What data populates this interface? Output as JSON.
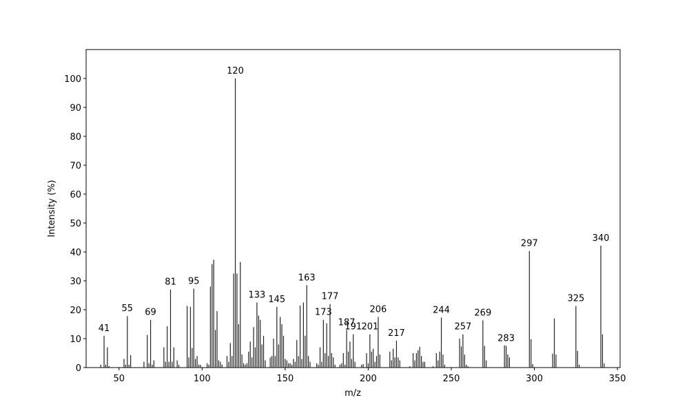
{
  "chart_data": {
    "type": "stem",
    "xlabel": "m/z",
    "ylabel": "Intensity (%)",
    "color": "#222222",
    "xlim": [
      30.2,
      351.6
    ],
    "ylim": [
      0,
      110
    ],
    "xticks": [
      50,
      100,
      150,
      200,
      250,
      300,
      350
    ],
    "yticks": [
      0,
      10,
      20,
      30,
      40,
      50,
      60,
      70,
      80,
      90,
      100
    ],
    "points": [
      {
        "x": 39,
        "y": 1
      },
      {
        "x": 41,
        "y": 11,
        "label": "41"
      },
      {
        "x": 42,
        "y": 1
      },
      {
        "x": 43,
        "y": 7
      },
      {
        "x": 44,
        "y": 0.5
      },
      {
        "x": 53,
        "y": 3
      },
      {
        "x": 54,
        "y": 1
      },
      {
        "x": 55,
        "y": 17.8,
        "label": "55"
      },
      {
        "x": 56,
        "y": 1
      },
      {
        "x": 57,
        "y": 4.3
      },
      {
        "x": 65,
        "y": 2
      },
      {
        "x": 67,
        "y": 11.3
      },
      {
        "x": 68,
        "y": 1.5
      },
      {
        "x": 69,
        "y": 16.5,
        "label": "69"
      },
      {
        "x": 70,
        "y": 1
      },
      {
        "x": 71,
        "y": 2.5
      },
      {
        "x": 77,
        "y": 7
      },
      {
        "x": 78,
        "y": 2
      },
      {
        "x": 79,
        "y": 14.3
      },
      {
        "x": 80,
        "y": 2
      },
      {
        "x": 81,
        "y": 27,
        "label": "81"
      },
      {
        "x": 82,
        "y": 2
      },
      {
        "x": 83,
        "y": 7
      },
      {
        "x": 85,
        "y": 2.5
      },
      {
        "x": 86,
        "y": 1
      },
      {
        "x": 91,
        "y": 21.3
      },
      {
        "x": 92,
        "y": 3.5
      },
      {
        "x": 93,
        "y": 21
      },
      {
        "x": 94,
        "y": 6.8
      },
      {
        "x": 95,
        "y": 27.3,
        "label": "95"
      },
      {
        "x": 96,
        "y": 3
      },
      {
        "x": 97,
        "y": 4
      },
      {
        "x": 98,
        "y": 1
      },
      {
        "x": 99,
        "y": 1
      },
      {
        "x": 103,
        "y": 1.5
      },
      {
        "x": 104,
        "y": 1
      },
      {
        "x": 105,
        "y": 28
      },
      {
        "x": 106,
        "y": 35.8
      },
      {
        "x": 107,
        "y": 37.3
      },
      {
        "x": 108,
        "y": 13
      },
      {
        "x": 109,
        "y": 19.5
      },
      {
        "x": 110,
        "y": 2.5
      },
      {
        "x": 111,
        "y": 2
      },
      {
        "x": 112,
        "y": 1
      },
      {
        "x": 115,
        "y": 4
      },
      {
        "x": 116,
        "y": 2
      },
      {
        "x": 117,
        "y": 8.5
      },
      {
        "x": 118,
        "y": 4
      },
      {
        "x": 119,
        "y": 32.5
      },
      {
        "x": 120,
        "y": 100,
        "label": "120"
      },
      {
        "x": 121,
        "y": 32.5
      },
      {
        "x": 122,
        "y": 15
      },
      {
        "x": 123,
        "y": 36.5
      },
      {
        "x": 124,
        "y": 4.5
      },
      {
        "x": 125,
        "y": 1.5
      },
      {
        "x": 126,
        "y": 1
      },
      {
        "x": 127,
        "y": 1.5
      },
      {
        "x": 128,
        "y": 5.5
      },
      {
        "x": 129,
        "y": 9
      },
      {
        "x": 130,
        "y": 3.5
      },
      {
        "x": 131,
        "y": 14
      },
      {
        "x": 132,
        "y": 7
      },
      {
        "x": 133,
        "y": 22.5,
        "label": "133"
      },
      {
        "x": 134,
        "y": 18
      },
      {
        "x": 135,
        "y": 16.5
      },
      {
        "x": 136,
        "y": 8
      },
      {
        "x": 137,
        "y": 11
      },
      {
        "x": 138,
        "y": 2.5
      },
      {
        "x": 141,
        "y": 3.5
      },
      {
        "x": 142,
        "y": 4
      },
      {
        "x": 143,
        "y": 10
      },
      {
        "x": 144,
        "y": 4
      },
      {
        "x": 145,
        "y": 21,
        "label": "145"
      },
      {
        "x": 146,
        "y": 8
      },
      {
        "x": 147,
        "y": 17.5
      },
      {
        "x": 148,
        "y": 15
      },
      {
        "x": 149,
        "y": 11
      },
      {
        "x": 150,
        "y": 3
      },
      {
        "x": 151,
        "y": 2.5
      },
      {
        "x": 152,
        "y": 1.5
      },
      {
        "x": 153,
        "y": 1.5
      },
      {
        "x": 154,
        "y": 1
      },
      {
        "x": 155,
        "y": 3
      },
      {
        "x": 156,
        "y": 2
      },
      {
        "x": 157,
        "y": 9.5
      },
      {
        "x": 158,
        "y": 4
      },
      {
        "x": 159,
        "y": 21.5
      },
      {
        "x": 160,
        "y": 3
      },
      {
        "x": 161,
        "y": 22.5
      },
      {
        "x": 162,
        "y": 11
      },
      {
        "x": 163,
        "y": 28.5,
        "label": "163"
      },
      {
        "x": 164,
        "y": 4
      },
      {
        "x": 165,
        "y": 2
      },
      {
        "x": 169,
        "y": 1.5
      },
      {
        "x": 170,
        "y": 1
      },
      {
        "x": 171,
        "y": 7
      },
      {
        "x": 172,
        "y": 2
      },
      {
        "x": 173,
        "y": 16.5,
        "label": "173"
      },
      {
        "x": 174,
        "y": 5
      },
      {
        "x": 175,
        "y": 15.3
      },
      {
        "x": 176,
        "y": 4
      },
      {
        "x": 177,
        "y": 22,
        "label": "177"
      },
      {
        "x": 178,
        "y": 5
      },
      {
        "x": 179,
        "y": 3.5
      },
      {
        "x": 180,
        "y": 1
      },
      {
        "x": 183,
        "y": 1
      },
      {
        "x": 184,
        "y": 1.5
      },
      {
        "x": 185,
        "y": 5
      },
      {
        "x": 186,
        "y": 1
      },
      {
        "x": 187,
        "y": 13,
        "label": "187"
      },
      {
        "x": 188,
        "y": 5.5
      },
      {
        "x": 189,
        "y": 9
      },
      {
        "x": 190,
        "y": 3
      },
      {
        "x": 191,
        "y": 11.5,
        "label": "191"
      },
      {
        "x": 192,
        "y": 2
      },
      {
        "x": 196,
        "y": 1
      },
      {
        "x": 197,
        "y": 1.2
      },
      {
        "x": 199,
        "y": 5
      },
      {
        "x": 200,
        "y": 1.5
      },
      {
        "x": 201,
        "y": 11.5,
        "label": "201"
      },
      {
        "x": 202,
        "y": 5.5
      },
      {
        "x": 203,
        "y": 6.5
      },
      {
        "x": 204,
        "y": 2
      },
      {
        "x": 205,
        "y": 4
      },
      {
        "x": 206,
        "y": 17.5,
        "label": "206"
      },
      {
        "x": 207,
        "y": 4.5
      },
      {
        "x": 213,
        "y": 5.5
      },
      {
        "x": 214,
        "y": 2.5
      },
      {
        "x": 215,
        "y": 6.5
      },
      {
        "x": 216,
        "y": 3.5
      },
      {
        "x": 217,
        "y": 9.3,
        "label": "217"
      },
      {
        "x": 218,
        "y": 3.5
      },
      {
        "x": 219,
        "y": 2.5
      },
      {
        "x": 225,
        "y": 0.5
      },
      {
        "x": 227,
        "y": 5
      },
      {
        "x": 228,
        "y": 2.5
      },
      {
        "x": 229,
        "y": 5
      },
      {
        "x": 230,
        "y": 6
      },
      {
        "x": 231,
        "y": 7.2
      },
      {
        "x": 232,
        "y": 4
      },
      {
        "x": 233,
        "y": 2
      },
      {
        "x": 234,
        "y": 2
      },
      {
        "x": 239,
        "y": 0.5
      },
      {
        "x": 241,
        "y": 5
      },
      {
        "x": 242,
        "y": 2.5
      },
      {
        "x": 243,
        "y": 5.5
      },
      {
        "x": 244,
        "y": 17.3,
        "label": "244"
      },
      {
        "x": 245,
        "y": 4.5
      },
      {
        "x": 246,
        "y": 1
      },
      {
        "x": 255,
        "y": 10
      },
      {
        "x": 256,
        "y": 7.3
      },
      {
        "x": 257,
        "y": 11.5,
        "label": "257"
      },
      {
        "x": 258,
        "y": 4.5
      },
      {
        "x": 259,
        "y": 1
      },
      {
        "x": 260,
        "y": 0.5
      },
      {
        "x": 269,
        "y": 16.3,
        "label": "269"
      },
      {
        "x": 270,
        "y": 7.5
      },
      {
        "x": 271,
        "y": 2.5
      },
      {
        "x": 282,
        "y": 7.7
      },
      {
        "x": 283,
        "y": 7.5,
        "label": "283"
      },
      {
        "x": 284,
        "y": 4.5
      },
      {
        "x": 285,
        "y": 3.5
      },
      {
        "x": 297,
        "y": 40.3,
        "label": "297"
      },
      {
        "x": 298,
        "y": 9.8
      },
      {
        "x": 299,
        "y": 1.2
      },
      {
        "x": 311,
        "y": 4.8
      },
      {
        "x": 312,
        "y": 17
      },
      {
        "x": 313,
        "y": 4.5
      },
      {
        "x": 325,
        "y": 21.3,
        "label": "325"
      },
      {
        "x": 326,
        "y": 5.8
      },
      {
        "x": 327,
        "y": 1
      },
      {
        "x": 340,
        "y": 42.2,
        "label": "340"
      },
      {
        "x": 341,
        "y": 11.5
      },
      {
        "x": 342,
        "y": 1.5
      }
    ]
  }
}
